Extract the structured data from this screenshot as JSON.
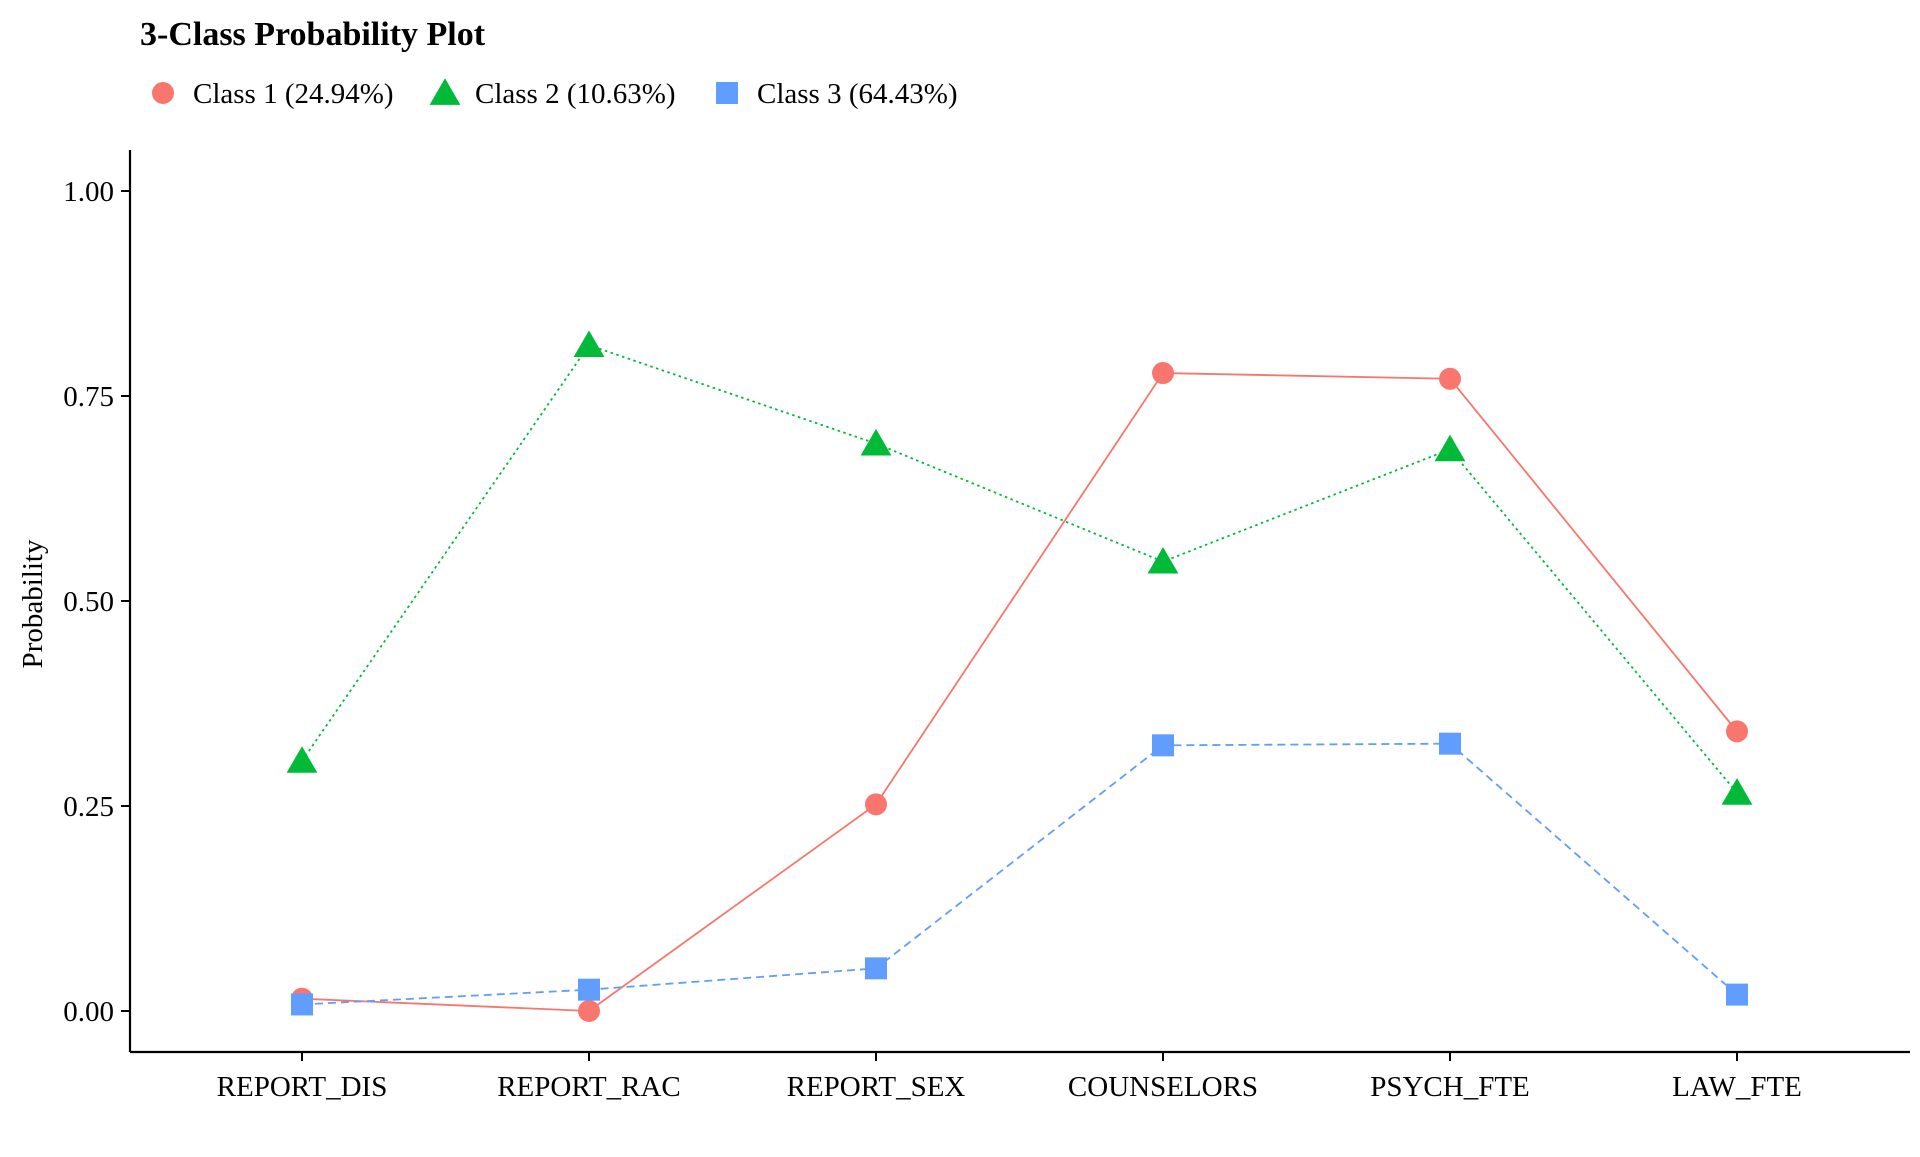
{
  "chart_data": {
    "type": "line",
    "title": "3-Class Probability Plot",
    "ylabel": "Probability",
    "xlabel": "",
    "categories": [
      "REPORT_DIS",
      "REPORT_RAC",
      "REPORT_SEX",
      "COUNSELORS",
      "PSYCH_FTE",
      "LAW_FTE"
    ],
    "ylim": [
      -0.05,
      1.05
    ],
    "yticks": [
      0.0,
      0.25,
      0.5,
      0.75,
      1.0
    ],
    "ytick_labels": [
      "0.00",
      "0.25",
      "0.50",
      "0.75",
      "1.00"
    ],
    "grid": false,
    "legend_position": "top-left",
    "series": [
      {
        "name": "Class 1 (24.94%)",
        "color": "#F8766D",
        "marker": "circle",
        "line_style": "solid",
        "values": [
          0.015,
          0.0,
          0.252,
          0.778,
          0.771,
          0.341
        ]
      },
      {
        "name": "Class 2 (10.63%)",
        "color": "#00BA38",
        "marker": "triangle",
        "line_style": "dotted",
        "values": [
          0.305,
          0.812,
          0.692,
          0.548,
          0.685,
          0.266
        ]
      },
      {
        "name": "Class 3 (64.43%)",
        "color": "#619CFF",
        "marker": "square",
        "line_style": "dashed",
        "values": [
          0.008,
          0.026,
          0.052,
          0.324,
          0.326,
          0.02
        ]
      }
    ]
  }
}
